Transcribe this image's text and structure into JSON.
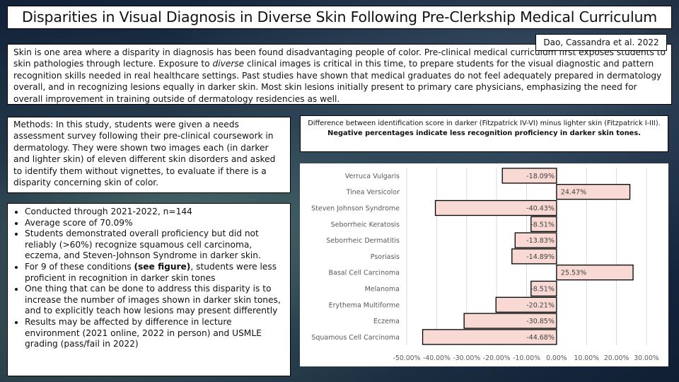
{
  "title": "Disparities in Visual Diagnosis in Diverse Skin Following Pre-Clerkship Medical Curriculum",
  "citation": "Dao, Cassandra et al. 2022",
  "intro": {
    "part1": "Skin is one area where a disparity in diagnosis has been found disadvantaging people of color. Pre-clinical medical curriculum first exposes students to skin pathologies through lecture. Exposure to ",
    "emph": "diverse",
    "part2": " clinical images is critical in this time, to prepare students for the visual diagnostic and pattern recognition skills needed in real healthcare settings. Past studies have shown that medical graduates do not feel adequately prepared in dermatology overall, and in recognizing lesions equally in darker skin. Most skin lesions initially present to primary care physicians, emphasizing the need for overall improvement in training outside of dermatology residencies as well."
  },
  "methods": "Methods: In this study, students were given a needs assessment survey following their pre-clinical coursework in dermatology. They were shown two images each (in darker and lighter skin) of eleven different skin disorders and asked to identify them without vignettes, to evaluate if there is a disparity concerning skin of color.",
  "bullets": {
    "b1": "Conducted through 2021-2022, n=144",
    "b2": "Average score of 70.09%",
    "b3": "Students demonstrated overall proficiency but did not reliably (>60%) recognize squamous cell carcinoma, eczema, and Steven-Johnson Syndrome in darker skin.",
    "b4a": "For 9 of these conditions ",
    "b4b": "(see figure)",
    "b4c": ", students were less proficient in recognition in darker skin tones",
    "b5": "One thing that can be done to address this disparity is to increase the number of images shown in darker skin tones, and to explicitly teach how lesions may present differently",
    "b6": "Results may be affected by difference in lecture environment (2021 online, 2022 in person) and USMLE grading (pass/fail in 2022)"
  },
  "chart_caption": {
    "normal": "Difference between identification score in darker (Fitzpatrick IV-VI) minus lighter skin (Fitzpatrick I-III). ",
    "bold": "Negative percentages indicate less recognition proficiency in darker skin tones."
  },
  "chart_data": {
    "type": "bar",
    "orientation": "horizontal",
    "categories": [
      "Verruca Vulgaris",
      "Tinea Versicolor",
      "Steven Johnson Syndrome",
      "Seborrheic Keratosis",
      "Seborrheic Dermatitis",
      "Psoriasis",
      "Basal Cell Carcinoma",
      "Melanoma",
      "Erythema Multiforme",
      "Eczema",
      "Squamous Cell Carcinoma"
    ],
    "values": [
      -18.09,
      24.47,
      -40.43,
      -8.51,
      -13.83,
      -14.89,
      25.53,
      -8.51,
      -20.21,
      -30.85,
      -44.68
    ],
    "data_labels": [
      "-18.09%",
      "24.47%",
      "-40.43%",
      "-8.51%",
      "-13.83%",
      "-14.89%",
      "25.53%",
      "-8.51%",
      "-20.21%",
      "-30.85%",
      "-44.68%"
    ],
    "xlim": [
      -50,
      30
    ],
    "xticks": [
      "-50.00%",
      "-40.00%",
      "-30.00%",
      "-20.00%",
      "-10.00%",
      "0.00%",
      "10.00%",
      "20.00%",
      "30.00%"
    ],
    "grid": true,
    "bar_color": "#f9d9d3",
    "bar_edge": "#000000"
  }
}
